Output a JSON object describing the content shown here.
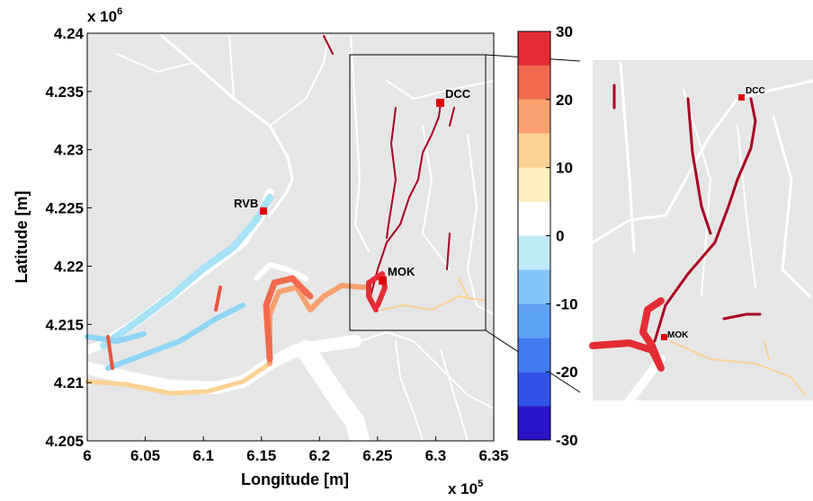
{
  "chart_data": {
    "type": "map",
    "xlabel": "Longitude [m]",
    "ylabel": "Latitude [m]",
    "xscale_label": "x 10",
    "xscale_exp": "5",
    "yscale_label": "x 10",
    "yscale_exp": "6",
    "xlim": [
      6,
      6.35
    ],
    "xticks": [
      6,
      6.05,
      6.1,
      6.15,
      6.2,
      6.25,
      6.3,
      6.35
    ],
    "ylim": [
      4.205,
      4.24
    ],
    "yticks": [
      4.205,
      4.21,
      4.215,
      4.22,
      4.225,
      4.23,
      4.235,
      4.24
    ],
    "stations": [
      "RVB",
      "DCC",
      "MOK"
    ],
    "colorbar": {
      "lim": [
        -30,
        30
      ],
      "ticks": [
        -30,
        -20,
        -10,
        0,
        10,
        20,
        30
      ],
      "bins": [
        -30,
        -25,
        -20,
        -15,
        -10,
        -5,
        0,
        5,
        10,
        15,
        20,
        25,
        30
      ],
      "colors": [
        "#2a14c8",
        "#2f52e8",
        "#3f7cf0",
        "#5ea2f5",
        "#85c6f8",
        "#bfeaf8",
        "#ffffff",
        "#fdeebd",
        "#fdd193",
        "#f9a16e",
        "#f16a4e",
        "#e42c35",
        "#a90022"
      ]
    }
  }
}
